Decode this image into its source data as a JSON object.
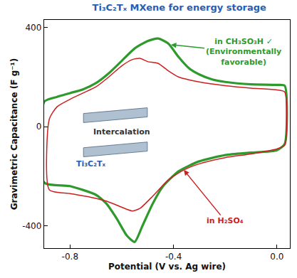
{
  "chart_data": {
    "type": "line",
    "title": "Ti₃C₂Tₓ MXene for energy storage",
    "x_label": "Potential (V vs. Ag wire)",
    "y_label": "Gravimetric Capacitance (F g⁻¹)",
    "xlim": [
      -0.9,
      0.05
    ],
    "xticks": [
      -0.8,
      -0.4,
      {
        "value": 0,
        "label": "0.0"
      }
    ],
    "ylim": [
      -490,
      430
    ],
    "yticks": [
      -400,
      0,
      400
    ],
    "grid": false,
    "series": [
      {
        "color": "#2e9a2e",
        "line_style": "solid",
        "x": [
          -0.9,
          -0.85,
          -0.8,
          -0.75,
          -0.7,
          -0.65,
          -0.6,
          -0.55,
          -0.5,
          -0.46,
          -0.42,
          -0.38,
          -0.34,
          -0.3,
          -0.25,
          -0.2,
          -0.1,
          0.0,
          0.03,
          0.03,
          0.0,
          -0.1,
          -0.2,
          -0.3,
          -0.38,
          -0.44,
          -0.48,
          -0.52,
          -0.55,
          -0.58,
          -0.62,
          -0.66,
          -0.7,
          -0.8,
          -0.9,
          -0.9
        ],
        "values": [
          100,
          120,
          135,
          150,
          175,
          215,
          265,
          315,
          345,
          355,
          335,
          280,
          235,
          210,
          190,
          180,
          170,
          168,
          165,
          -70,
          -95,
          -105,
          -115,
          -140,
          -180,
          -240,
          -310,
          -400,
          -465,
          -440,
          -370,
          -310,
          -275,
          -240,
          -225,
          100
        ]
      },
      {
        "color": "#cc1f1f",
        "line_style": "solid",
        "x": [
          -0.88,
          -0.85,
          -0.8,
          -0.75,
          -0.7,
          -0.65,
          -0.6,
          -0.56,
          -0.53,
          -0.5,
          -0.46,
          -0.42,
          -0.38,
          -0.3,
          -0.2,
          -0.1,
          0.0,
          0.03,
          0.03,
          0.0,
          -0.1,
          -0.2,
          -0.3,
          -0.36,
          -0.42,
          -0.48,
          -0.53,
          -0.56,
          -0.6,
          -0.66,
          -0.72,
          -0.8,
          -0.88,
          -0.88
        ],
        "values": [
          30,
          80,
          110,
          135,
          160,
          200,
          245,
          270,
          275,
          262,
          255,
          225,
          200,
          180,
          165,
          155,
          148,
          140,
          -75,
          -90,
          -110,
          -125,
          -150,
          -175,
          -215,
          -280,
          -330,
          -340,
          -325,
          -300,
          -285,
          -270,
          -255,
          30
        ]
      }
    ],
    "annotations": [
      {
        "lines": [
          "in CH₃SO₃H ✓",
          "(Environmentally",
          "favorable)"
        ],
        "color": "#2e9a2e",
        "x": -0.41,
        "y": 330,
        "text_x": -0.13,
        "text_y": 300
      },
      {
        "lines": [
          "in H₂SO₄"
        ],
        "color": "#cc1f1f",
        "x": -0.36,
        "y": -175,
        "text_x": -0.2,
        "text_y": -380
      },
      {
        "lines": [
          "Intercalation"
        ],
        "color": "#333333",
        "x": -0.6,
        "y": -20
      },
      {
        "lines": [
          "Ti₃C₂Tₓ"
        ],
        "color": "#2a5db0",
        "x": -0.72,
        "y": -150
      }
    ]
  }
}
